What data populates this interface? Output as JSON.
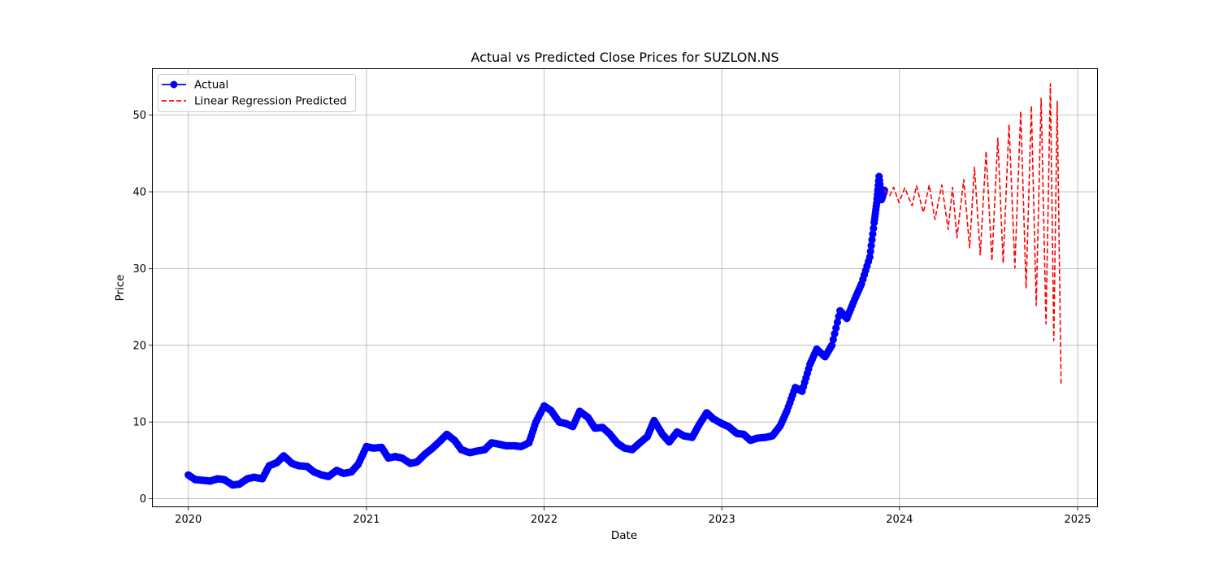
{
  "chart_data": {
    "type": "line",
    "title": "Actual vs Predicted Close Prices for SUZLON.NS",
    "xlabel": "Date",
    "ylabel": "Price",
    "xlim": [
      "2019-10-20",
      "2025-02-10"
    ],
    "ylim": [
      -1,
      56
    ],
    "x_ticks": [
      "2020",
      "2021",
      "2022",
      "2023",
      "2024",
      "2025"
    ],
    "y_ticks": [
      0,
      10,
      20,
      30,
      40,
      50
    ],
    "grid": true,
    "legend": "top-left",
    "series": [
      {
        "name": "Actual",
        "color": "#0000ff",
        "style": "solid-with-circle-markers",
        "points": [
          [
            "2020-01-01",
            3.1
          ],
          [
            "2020-01-15",
            2.5
          ],
          [
            "2020-02-01",
            2.4
          ],
          [
            "2020-02-15",
            2.3
          ],
          [
            "2020-03-01",
            2.6
          ],
          [
            "2020-03-15",
            2.5
          ],
          [
            "2020-04-01",
            1.8
          ],
          [
            "2020-04-15",
            1.9
          ],
          [
            "2020-05-01",
            2.6
          ],
          [
            "2020-05-15",
            2.8
          ],
          [
            "2020-06-01",
            2.6
          ],
          [
            "2020-06-15",
            4.3
          ],
          [
            "2020-07-01",
            4.7
          ],
          [
            "2020-07-15",
            5.6
          ],
          [
            "2020-08-01",
            4.6
          ],
          [
            "2020-08-15",
            4.3
          ],
          [
            "2020-09-01",
            4.2
          ],
          [
            "2020-09-15",
            3.5
          ],
          [
            "2020-10-01",
            3.1
          ],
          [
            "2020-10-15",
            2.9
          ],
          [
            "2020-11-01",
            3.7
          ],
          [
            "2020-11-15",
            3.3
          ],
          [
            "2020-12-01",
            3.5
          ],
          [
            "2020-12-15",
            4.5
          ],
          [
            "2021-01-01",
            6.8
          ],
          [
            "2021-01-15",
            6.6
          ],
          [
            "2021-02-01",
            6.7
          ],
          [
            "2021-02-15",
            5.3
          ],
          [
            "2021-03-01",
            5.5
          ],
          [
            "2021-03-15",
            5.3
          ],
          [
            "2021-04-01",
            4.6
          ],
          [
            "2021-04-15",
            4.8
          ],
          [
            "2021-05-01",
            5.8
          ],
          [
            "2021-05-15",
            6.5
          ],
          [
            "2021-06-01",
            7.5
          ],
          [
            "2021-06-15",
            8.4
          ],
          [
            "2021-07-01",
            7.6
          ],
          [
            "2021-07-15",
            6.4
          ],
          [
            "2021-08-01",
            6.0
          ],
          [
            "2021-08-15",
            6.2
          ],
          [
            "2021-09-01",
            6.4
          ],
          [
            "2021-09-15",
            7.3
          ],
          [
            "2021-10-01",
            7.1
          ],
          [
            "2021-10-15",
            6.9
          ],
          [
            "2021-11-01",
            6.9
          ],
          [
            "2021-11-15",
            6.8
          ],
          [
            "2021-12-01",
            7.3
          ],
          [
            "2021-12-15",
            10.0
          ],
          [
            "2022-01-01",
            12.1
          ],
          [
            "2022-01-15",
            11.5
          ],
          [
            "2022-02-01",
            10.0
          ],
          [
            "2022-02-15",
            9.8
          ],
          [
            "2022-03-01",
            9.4
          ],
          [
            "2022-03-15",
            11.4
          ],
          [
            "2022-04-01",
            10.6
          ],
          [
            "2022-04-15",
            9.2
          ],
          [
            "2022-05-01",
            9.3
          ],
          [
            "2022-05-15",
            8.5
          ],
          [
            "2022-06-01",
            7.2
          ],
          [
            "2022-06-15",
            6.6
          ],
          [
            "2022-07-01",
            6.4
          ],
          [
            "2022-07-15",
            7.2
          ],
          [
            "2022-08-01",
            8.1
          ],
          [
            "2022-08-15",
            10.2
          ],
          [
            "2022-09-01",
            8.4
          ],
          [
            "2022-09-15",
            7.4
          ],
          [
            "2022-10-01",
            8.7
          ],
          [
            "2022-10-15",
            8.2
          ],
          [
            "2022-11-01",
            8.0
          ],
          [
            "2022-11-15",
            9.6
          ],
          [
            "2022-12-01",
            11.2
          ],
          [
            "2022-12-15",
            10.4
          ],
          [
            "2023-01-01",
            9.8
          ],
          [
            "2023-01-15",
            9.4
          ],
          [
            "2023-02-01",
            8.5
          ],
          [
            "2023-02-15",
            8.4
          ],
          [
            "2023-03-01",
            7.6
          ],
          [
            "2023-03-15",
            7.9
          ],
          [
            "2023-04-01",
            8.0
          ],
          [
            "2023-04-15",
            8.2
          ],
          [
            "2023-05-01",
            9.5
          ],
          [
            "2023-05-15",
            11.5
          ],
          [
            "2023-06-01",
            14.5
          ],
          [
            "2023-06-15",
            14.0
          ],
          [
            "2023-07-01",
            17.5
          ],
          [
            "2023-07-15",
            19.5
          ],
          [
            "2023-08-01",
            18.5
          ],
          [
            "2023-08-15",
            20.0
          ],
          [
            "2023-09-01",
            24.5
          ],
          [
            "2023-09-15",
            23.5
          ],
          [
            "2023-10-01",
            26.0
          ],
          [
            "2023-10-15",
            28.0
          ],
          [
            "2023-11-01",
            31.5
          ],
          [
            "2023-11-10",
            36.0
          ],
          [
            "2023-11-15",
            38.5
          ],
          [
            "2023-11-20",
            42.0
          ],
          [
            "2023-11-25",
            39.0
          ],
          [
            "2023-12-01",
            40.2
          ]
        ]
      },
      {
        "name": "Linear Regression Predicted",
        "color": "#ff0000",
        "style": "dashed",
        "points": [
          [
            "2023-12-01",
            40.2
          ],
          [
            "2023-12-12",
            39.5
          ],
          [
            "2023-12-20",
            40.6
          ],
          [
            "2023-12-31",
            38.6
          ],
          [
            "2024-01-12",
            40.5
          ],
          [
            "2024-01-27",
            38.2
          ],
          [
            "2024-02-05",
            40.8
          ],
          [
            "2024-02-19",
            37.3
          ],
          [
            "2024-03-02",
            40.9
          ],
          [
            "2024-03-14",
            36.4
          ],
          [
            "2024-03-28",
            40.9
          ],
          [
            "2024-04-10",
            35.1
          ],
          [
            "2024-04-19",
            40.6
          ],
          [
            "2024-04-28",
            34.0
          ],
          [
            "2024-05-12",
            41.6
          ],
          [
            "2024-05-24",
            32.7
          ],
          [
            "2024-06-03",
            43.2
          ],
          [
            "2024-06-15",
            31.8
          ],
          [
            "2024-06-27",
            45.3
          ],
          [
            "2024-07-09",
            31.0
          ],
          [
            "2024-07-21",
            47.0
          ],
          [
            "2024-08-01",
            30.7
          ],
          [
            "2024-08-13",
            48.8
          ],
          [
            "2024-08-25",
            30.1
          ],
          [
            "2024-09-06",
            50.5
          ],
          [
            "2024-09-17",
            27.4
          ],
          [
            "2024-09-28",
            51.2
          ],
          [
            "2024-10-08",
            25.2
          ],
          [
            "2024-10-18",
            52.2
          ],
          [
            "2024-10-28",
            22.8
          ],
          [
            "2024-11-06",
            54.1
          ],
          [
            "2024-11-13",
            20.6
          ],
          [
            "2024-11-20",
            51.8
          ],
          [
            "2024-11-28",
            14.8
          ]
        ]
      }
    ]
  }
}
